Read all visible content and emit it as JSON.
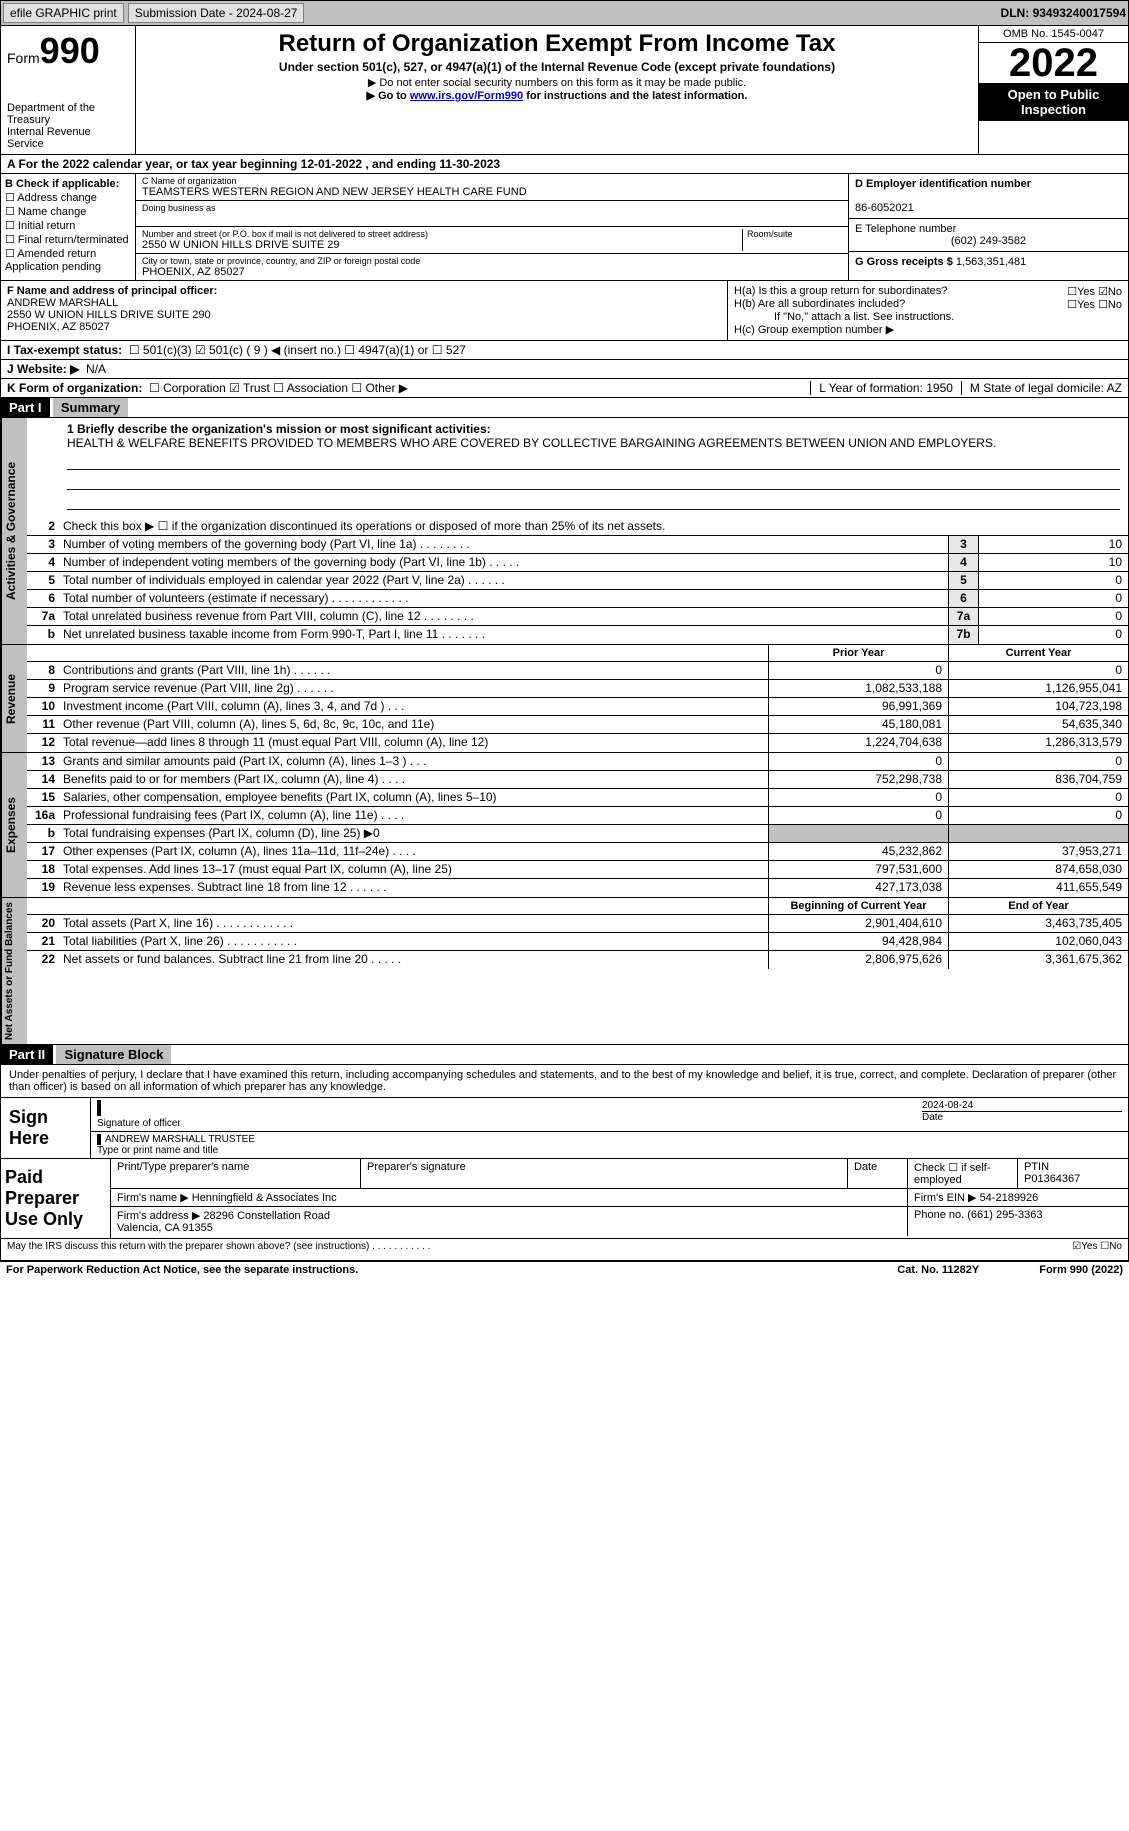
{
  "topbar": {
    "efile": "efile GRAPHIC print",
    "submission": "Submission Date - 2024-08-27",
    "dln_label": "DLN:",
    "dln": "93493240017594"
  },
  "header": {
    "form_word": "Form",
    "form_num": "990",
    "dept": "Department of the Treasury\nInternal Revenue Service",
    "title": "Return of Organization Exempt From Income Tax",
    "sub1": "Under section 501(c), 527, or 4947(a)(1) of the Internal Revenue Code (except private foundations)",
    "sub2": "▶ Do not enter social security numbers on this form as it may be made public.",
    "sub3_pre": "▶ Go to ",
    "sub3_link": "www.irs.gov/Form990",
    "sub3_post": " for instructions and the latest information.",
    "omb": "OMB No. 1545-0047",
    "year": "2022",
    "open": "Open to Public Inspection"
  },
  "row_a": "A For the 2022 calendar year, or tax year beginning 12-01-2022    , and ending 11-30-2023",
  "col_b": {
    "hdr": "B Check if applicable:",
    "opts": [
      "☐ Address change",
      "☐ Name change",
      "☐ Initial return",
      "☐ Final return/terminated",
      "☐ Amended return",
      "  Application pending"
    ]
  },
  "col_c": {
    "name_label": "C Name of organization",
    "name": "TEAMSTERS WESTERN REGION AND NEW JERSEY HEALTH CARE FUND",
    "dba_label": "Doing business as",
    "dba": "",
    "street_label": "Number and street (or P.O. box if mail is not delivered to street address)",
    "street": "2550 W UNION HILLS DRIVE SUITE 29",
    "room_label": "Room/suite",
    "city_label": "City or town, state or province, country, and ZIP or foreign postal code",
    "city": "PHOENIX, AZ  85027"
  },
  "col_d": {
    "ein_label": "D Employer identification number",
    "ein": "86-6052021",
    "phone_label": "E Telephone number",
    "phone": "(602) 249-3582",
    "gross_label": "G Gross receipts $",
    "gross": "1,563,351,481"
  },
  "col_f": {
    "label": "F Name and address of principal officer:",
    "name": "ANDREW MARSHALL",
    "addr1": "2550 W UNION HILLS DRIVE SUITE 290",
    "addr2": "PHOENIX, AZ  85027"
  },
  "col_h": {
    "ha": "H(a)  Is this a group return for subordinates?",
    "ha_yn": "☐Yes ☑No",
    "hb": "H(b)  Are all subordinates included?",
    "hb_yn": "☐Yes ☐No",
    "hb_note": "If \"No,\" attach a list. See instructions.",
    "hc": "H(c)  Group exemption number ▶"
  },
  "row_i": {
    "label": "I   Tax-exempt status:",
    "opts": "☐ 501(c)(3)   ☑ 501(c) ( 9 ) ◀ (insert no.)   ☐ 4947(a)(1) or  ☐ 527"
  },
  "row_j": {
    "label": "J   Website: ▶",
    "val": "N/A"
  },
  "row_k": {
    "label": "K Form of organization:",
    "opts": "☐ Corporation  ☑ Trust  ☐ Association  ☐ Other ▶",
    "l": "L Year of formation: 1950",
    "m": "M State of legal domicile: AZ"
  },
  "part1": {
    "hdr": "Part I",
    "title": "Summary"
  },
  "summary": {
    "tab_gov": "Activities & Governance",
    "tab_rev": "Revenue",
    "tab_exp": "Expenses",
    "tab_net": "Net Assets or Fund Balances",
    "l1_label": "1   Briefly describe the organization's mission or most significant activities:",
    "l1_text": "HEALTH & WELFARE BENEFITS PROVIDED TO MEMBERS WHO ARE COVERED BY COLLECTIVE BARGAINING AGREEMENTS BETWEEN UNION AND EMPLOYERS.",
    "l2": "Check this box ▶ ☐  if the organization discontinued its operations or disposed of more than 25% of its net assets.",
    "lines_gov": [
      {
        "n": "3",
        "d": "Number of voting members of the governing body (Part VI, line 1a)   .    .    .    .    .    .    .    .",
        "c": "3",
        "v": "10"
      },
      {
        "n": "4",
        "d": "Number of independent voting members of the governing body (Part VI, line 1b)  .    .    .    .    .",
        "c": "4",
        "v": "10"
      },
      {
        "n": "5",
        "d": "Total number of individuals employed in calendar year 2022 (Part V, line 2a)  .    .    .    .    .    .",
        "c": "5",
        "v": "0"
      },
      {
        "n": "6",
        "d": "Total number of volunteers (estimate if necessary)    .    .    .    .    .    .    .    .    .    .    .    .",
        "c": "6",
        "v": "0"
      },
      {
        "n": "7a",
        "d": "Total unrelated business revenue from Part VIII, column (C), line 12   .    .    .    .    .    .    .    .",
        "c": "7a",
        "v": "0"
      },
      {
        "n": "b",
        "d": "Net unrelated business taxable income from Form 990-T, Part I, line 11  .    .    .    .    .    .    .",
        "c": "7b",
        "v": "0"
      }
    ],
    "col_prior": "Prior Year",
    "col_current": "Current Year",
    "lines_rev": [
      {
        "n": "8",
        "d": "Contributions and grants (Part VIII, line 1h)   .    .    .    .    .    .",
        "p": "0",
        "c": "0"
      },
      {
        "n": "9",
        "d": "Program service revenue (Part VIII, line 2g)   .    .    .    .    .    .",
        "p": "1,082,533,188",
        "c": "1,126,955,041"
      },
      {
        "n": "10",
        "d": "Investment income (Part VIII, column (A), lines 3, 4, and 7d )   .    .    .",
        "p": "96,991,369",
        "c": "104,723,198"
      },
      {
        "n": "11",
        "d": "Other revenue (Part VIII, column (A), lines 5, 6d, 8c, 9c, 10c, and 11e)",
        "p": "45,180,081",
        "c": "54,635,340"
      },
      {
        "n": "12",
        "d": "Total revenue—add lines 8 through 11 (must equal Part VIII, column (A), line 12)",
        "p": "1,224,704,638",
        "c": "1,286,313,579"
      }
    ],
    "lines_exp": [
      {
        "n": "13",
        "d": "Grants and similar amounts paid (Part IX, column (A), lines 1–3 )  .    .    .",
        "p": "0",
        "c": "0"
      },
      {
        "n": "14",
        "d": "Benefits paid to or for members (Part IX, column (A), line 4)  .    .    .    .",
        "p": "752,298,738",
        "c": "836,704,759"
      },
      {
        "n": "15",
        "d": "Salaries, other compensation, employee benefits (Part IX, column (A), lines 5–10)",
        "p": "0",
        "c": "0"
      },
      {
        "n": "16a",
        "d": "Professional fundraising fees (Part IX, column (A), line 11e)  .    .    .    .",
        "p": "0",
        "c": "0"
      },
      {
        "n": "b",
        "d": "Total fundraising expenses (Part IX, column (D), line 25) ▶0",
        "p": "",
        "c": "",
        "gray": true
      },
      {
        "n": "17",
        "d": "Other expenses (Part IX, column (A), lines 11a–11d, 11f–24e)  .    .    .    .",
        "p": "45,232,862",
        "c": "37,953,271"
      },
      {
        "n": "18",
        "d": "Total expenses. Add lines 13–17 (must equal Part IX, column (A), line 25)",
        "p": "797,531,600",
        "c": "874,658,030"
      },
      {
        "n": "19",
        "d": "Revenue less expenses. Subtract line 18 from line 12  .    .    .    .    .    .",
        "p": "427,173,038",
        "c": "411,655,549"
      }
    ],
    "col_begin": "Beginning of Current Year",
    "col_end": "End of Year",
    "lines_net": [
      {
        "n": "20",
        "d": "Total assets (Part X, line 16)  .    .    .    .    .    .    .    .    .    .    .    .",
        "p": "2,901,404,610",
        "c": "3,463,735,405"
      },
      {
        "n": "21",
        "d": "Total liabilities (Part X, line 26)  .    .    .    .    .    .    .    .    .    .    .",
        "p": "94,428,984",
        "c": "102,060,043"
      },
      {
        "n": "22",
        "d": "Net assets or fund balances. Subtract line 21 from line 20  .    .    .    .    .",
        "p": "2,806,975,626",
        "c": "3,361,675,362"
      }
    ]
  },
  "part2": {
    "hdr": "Part II",
    "title": "Signature Block"
  },
  "sig": {
    "decl": "Under penalties of perjury, I declare that I have examined this return, including accompanying schedules and statements, and to the best of my knowledge and belief, it is true, correct, and complete. Declaration of preparer (other than officer) is based on all information of which preparer has any knowledge.",
    "sign_here": "Sign Here",
    "sig_officer": "Signature of officer",
    "sig_date": "2024-08-24",
    "date_label": "Date",
    "printed": "ANDREW MARSHALL TRUSTEE",
    "printed_label": "Type or print name and title",
    "paid_label": "Paid Preparer Use Only",
    "prep_name_label": "Print/Type preparer's name",
    "prep_sig_label": "Preparer's signature",
    "prep_date_label": "Date",
    "prep_check": "Check ☐ if self-employed",
    "ptin_label": "PTIN",
    "ptin": "P01364367",
    "firm_name_label": "Firm's name    ▶",
    "firm_name": "Henningfield & Associates Inc",
    "firm_ein_label": "Firm's EIN ▶",
    "firm_ein": "54-2189926",
    "firm_addr_label": "Firm's address ▶",
    "firm_addr": "28296 Constellation Road\nValencia, CA  91355",
    "firm_phone_label": "Phone no.",
    "firm_phone": "(661) 295-3363",
    "may_discuss": "May the IRS discuss this return with the preparer shown above? (see instructions)   .    .    .    .    .    .    .    .    .    .    .",
    "may_yn": "☑Yes ☐No"
  },
  "footer": {
    "left": "For Paperwork Reduction Act Notice, see the separate instructions.",
    "mid": "Cat. No. 11282Y",
    "right": "Form 990 (2022)"
  }
}
